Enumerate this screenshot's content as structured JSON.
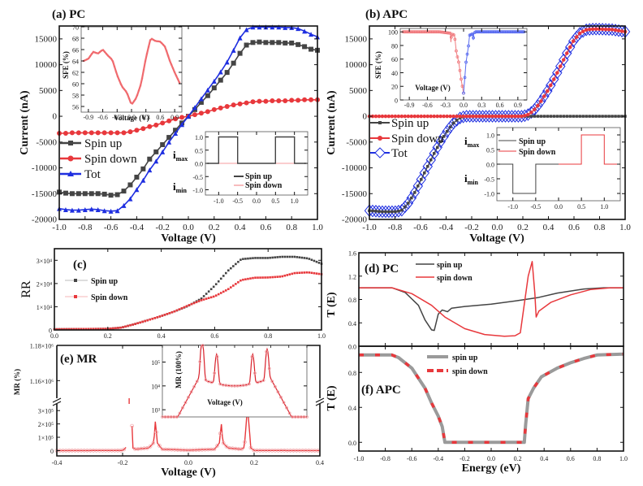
{
  "colors": {
    "black": "#444444",
    "red": "#e8383c",
    "blue": "#1f2fe0",
    "gray": "#9a9a9a",
    "pink": "#f0a0a4"
  },
  "chart_data": [
    {
      "id": "a",
      "type": "line",
      "title": "(a) PC",
      "xlabel": "Voltage (V)",
      "ylabel": "Current (nA)",
      "xlim": [
        -1.0,
        1.0
      ],
      "ylim": [
        -20000,
        17500
      ],
      "xticks": [
        "-1.0",
        "-0.8",
        "-0.6",
        "-0.4",
        "-0.2",
        "0.0",
        "0.2",
        "0.4",
        "0.6",
        "0.8",
        "1.0"
      ],
      "yticks": [
        "-20000",
        "-15000",
        "-10000",
        "-5000",
        "0",
        "5000",
        "10000",
        "15000"
      ],
      "legend": [
        "Spin up",
        "Spin down",
        "Tot"
      ],
      "x": [
        -1.0,
        -0.95,
        -0.9,
        -0.85,
        -0.8,
        -0.75,
        -0.7,
        -0.65,
        -0.6,
        -0.55,
        -0.5,
        -0.45,
        -0.4,
        -0.35,
        -0.3,
        -0.25,
        -0.2,
        -0.15,
        -0.1,
        -0.05,
        0.0,
        0.05,
        0.1,
        0.15,
        0.2,
        0.25,
        0.3,
        0.35,
        0.4,
        0.45,
        0.5,
        0.55,
        0.6,
        0.65,
        0.7,
        0.75,
        0.8,
        0.85,
        0.9,
        0.95,
        1.0
      ],
      "series": [
        {
          "name": "Spin up",
          "values": [
            -14700,
            -14900,
            -15000,
            -15000,
            -15000,
            -15000,
            -15000,
            -15100,
            -15300,
            -15200,
            -14500,
            -13300,
            -11800,
            -10200,
            -8300,
            -6900,
            -5500,
            -4100,
            -2700,
            -1300,
            0,
            1300,
            2700,
            4000,
            5500,
            7000,
            8500,
            10300,
            12200,
            13800,
            14300,
            14400,
            14300,
            14300,
            14300,
            14200,
            14200,
            13900,
            13500,
            13000,
            12800
          ]
        },
        {
          "name": "Spin down",
          "values": [
            -3300,
            -3300,
            -3200,
            -3200,
            -3200,
            -3200,
            -3200,
            -3200,
            -3200,
            -3200,
            -3200,
            -3000,
            -2700,
            -2400,
            -2000,
            -1700,
            -1300,
            -900,
            -500,
            -200,
            0,
            300,
            600,
            900,
            1300,
            1600,
            1900,
            2200,
            2400,
            2600,
            2800,
            2900,
            2900,
            3000,
            3000,
            3000,
            3100,
            3100,
            3200,
            3200,
            3200
          ]
        },
        {
          "name": "Tot",
          "values": [
            -17900,
            -18100,
            -18200,
            -18200,
            -18100,
            -18000,
            -18100,
            -18300,
            -18400,
            -18300,
            -17300,
            -16000,
            -14200,
            -12400,
            -10400,
            -8700,
            -6900,
            -5000,
            -3300,
            -1600,
            0,
            1700,
            3400,
            5100,
            6800,
            8600,
            10500,
            12800,
            15200,
            16800,
            17300,
            17300,
            17300,
            17300,
            17300,
            17200,
            17200,
            17000,
            16500,
            15900,
            15400
          ]
        }
      ],
      "inset_sfe": {
        "ylabel": "SFE (%)",
        "xlabel": "Voltage (V)",
        "ylim": [
          55,
          70
        ],
        "xlim": [
          -1.05,
          1.05
        ],
        "xticks": [
          "-0.9",
          "-0.6",
          "-0.3",
          "0.0",
          "0.3",
          "0.6",
          "0.9"
        ],
        "yticks": [
          "56",
          "58",
          "60",
          "62",
          "64",
          "66",
          "68",
          "70"
        ],
        "x": [
          -1.0,
          -0.9,
          -0.8,
          -0.7,
          -0.6,
          -0.5,
          -0.4,
          -0.3,
          -0.2,
          -0.1,
          0.0,
          0.1,
          0.2,
          0.3,
          0.4,
          0.5,
          0.6,
          0.7,
          0.8,
          0.9,
          1.0
        ],
        "values": [
          64.0,
          64.4,
          65.6,
          65.3,
          66.0,
          65.0,
          64.2,
          61.5,
          59.5,
          58.5,
          56.3,
          57.5,
          60.0,
          64.5,
          68.0,
          67.5,
          67.4,
          66.5,
          64.0,
          62.0,
          60.2
        ]
      },
      "inset_i": {
        "yticks": [
          "1.0",
          "0.5",
          "0.0",
          "-0.5",
          "-1.0"
        ],
        "xticks": [
          "-1.0",
          "-0.5",
          "0.0",
          "0.5",
          "1.0"
        ],
        "ylabel_max": "i",
        "ylabel_max_sub": "max",
        "ylabel_min": "i",
        "ylabel_min_sub": "min",
        "legend": [
          "Spin up",
          "Spin down"
        ],
        "spin_up": [
          [
            -1.3,
            0
          ],
          [
            -1.0,
            0
          ],
          [
            -1.0,
            1
          ],
          [
            -0.5,
            1
          ],
          [
            -0.5,
            0
          ],
          [
            0.5,
            0
          ],
          [
            0.5,
            1
          ],
          [
            1.0,
            1
          ],
          [
            1.0,
            0
          ],
          [
            1.3,
            0
          ]
        ],
        "spin_down": [
          [
            -1.3,
            0
          ],
          [
            1.3,
            0
          ]
        ]
      }
    },
    {
      "id": "b",
      "type": "line",
      "title": "(b) APC",
      "xlabel": "Voltage (V)",
      "ylabel": "Current (nA)",
      "xlim": [
        -1.0,
        1.0
      ],
      "ylim": [
        -20000,
        17500
      ],
      "xticks": [
        "-1.0",
        "-0.8",
        "-0.6",
        "-0.4",
        "-0.2",
        "0.0",
        "0.2",
        "0.4",
        "0.6",
        "0.8",
        "1.0"
      ],
      "yticks": [
        "-20000",
        "-15000",
        "-10000",
        "-5000",
        "0",
        "5000",
        "10000",
        "15000"
      ],
      "legend": [
        "Spin up",
        "Spin down",
        "Tot"
      ],
      "x": [
        -1.0,
        -0.9,
        -0.8,
        -0.75,
        -0.7,
        -0.65,
        -0.6,
        -0.55,
        -0.5,
        -0.45,
        -0.4,
        -0.35,
        -0.3,
        -0.25,
        -0.2,
        0.0,
        0.2,
        0.25,
        0.3,
        0.35,
        0.4,
        0.45,
        0.5,
        0.55,
        0.6,
        0.65,
        0.7,
        0.75,
        0.8,
        0.9,
        1.0
      ],
      "series": [
        {
          "name": "Spin up",
          "values": [
            -18300,
            -18500,
            -18500,
            -18300,
            -17000,
            -15000,
            -12500,
            -10000,
            -7500,
            -5200,
            -3200,
            -1500,
            -400,
            0,
            0,
            0,
            0,
            0,
            0,
            0,
            0,
            0,
            0,
            0,
            0,
            0,
            0,
            0,
            0,
            0,
            0
          ]
        },
        {
          "name": "Spin down",
          "values": [
            0,
            0,
            0,
            0,
            0,
            0,
            0,
            0,
            0,
            0,
            0,
            0,
            0,
            0,
            0,
            0,
            0,
            400,
            1500,
            3200,
            5200,
            7500,
            10000,
            12500,
            14800,
            16200,
            16800,
            16900,
            16900,
            16800,
            16400
          ]
        },
        {
          "name": "Tot",
          "values": [
            -18300,
            -18500,
            -18500,
            -18300,
            -17000,
            -15000,
            -12500,
            -10000,
            -7500,
            -5200,
            -3200,
            -1500,
            -400,
            0,
            0,
            0,
            0,
            400,
            1500,
            3200,
            5200,
            7500,
            10000,
            12500,
            14800,
            16200,
            16800,
            16900,
            16900,
            16800,
            16400
          ]
        }
      ],
      "inset_sfe": {
        "ylabel": "SFE (%)",
        "xlabel": "Voltage (V)",
        "ylim": [
          0,
          105
        ],
        "xlim": [
          -1.05,
          1.05
        ],
        "xticks": [
          "-0.9",
          "-0.6",
          "-0.3",
          "0.0",
          "0.3",
          "0.6",
          "0.9"
        ],
        "yticks": [
          "0",
          "20",
          "40",
          "60",
          "80",
          "100"
        ],
        "red": {
          "x": [
            -1.0,
            -0.4,
            -0.22,
            -0.21,
            -0.2,
            -0.15,
            -0.12,
            -0.08,
            -0.04,
            0.0
          ],
          "values": [
            100,
            100,
            98,
            85,
            97,
            95,
            70,
            55,
            30,
            10
          ]
        },
        "blue": {
          "x": [
            0.0,
            0.04,
            0.08,
            0.1,
            0.15,
            0.16,
            0.17,
            0.2,
            1.0
          ],
          "values": [
            10,
            55,
            78,
            95,
            97,
            88,
            98,
            100,
            100
          ]
        }
      },
      "inset_i": {
        "yticks": [
          "1.0",
          "0.5",
          "0.0",
          "-0.5",
          "-1.0"
        ],
        "xticks": [
          "-1.0",
          "-0.5",
          "0.0",
          "0.5",
          "1.0"
        ],
        "ylabel_max": "i",
        "ylabel_max_sub": "max",
        "ylabel_min": "i",
        "ylabel_min_sub": "min",
        "legend": [
          "Spin  up",
          "Spin down"
        ],
        "spin_up": [
          [
            -1.3,
            0
          ],
          [
            -1.0,
            0
          ],
          [
            -1.0,
            -1
          ],
          [
            -0.5,
            -1
          ],
          [
            -0.5,
            0
          ],
          [
            0.0,
            0
          ]
        ],
        "spin_down": [
          [
            0.0,
            0
          ],
          [
            0.5,
            0
          ],
          [
            0.5,
            1
          ],
          [
            1.0,
            1
          ],
          [
            1.0,
            0
          ],
          [
            1.3,
            0
          ]
        ]
      }
    },
    {
      "id": "c",
      "type": "line",
      "title": "(c)",
      "xlabel": "",
      "ylabel": "RR",
      "xlim": [
        0,
        1.0
      ],
      "ylim": [
        0,
        35000
      ],
      "xticks": [
        "0.0",
        "0.2",
        "0.4",
        "0.6",
        "0.8",
        "1.0"
      ],
      "yticks": [
        "0",
        "1×10⁴",
        "2×10⁴",
        "3×10⁴"
      ],
      "legend": [
        "Spin up",
        "Spin down"
      ],
      "x": [
        0.0,
        0.1,
        0.2,
        0.25,
        0.3,
        0.35,
        0.4,
        0.45,
        0.5,
        0.55,
        0.6,
        0.65,
        0.7,
        0.75,
        0.8,
        0.85,
        0.9,
        0.95,
        1.0
      ],
      "series": [
        {
          "name": "Spin up",
          "values": [
            300,
            400,
            500,
            1000,
            2500,
            4200,
            6000,
            8000,
            10300,
            13500,
            19000,
            25500,
            30500,
            31000,
            31000,
            31500,
            31500,
            30800,
            28500
          ]
        },
        {
          "name": "Spin down",
          "values": [
            300,
            400,
            500,
            1000,
            2500,
            4200,
            6000,
            8000,
            10500,
            12800,
            14500,
            17500,
            21500,
            22500,
            22600,
            23000,
            24500,
            24800,
            24000
          ]
        }
      ]
    },
    {
      "id": "d",
      "type": "line",
      "title": "(d) PC",
      "xlabel": "",
      "ylabel": "T (E)",
      "xlim": [
        -1.0,
        1.0
      ],
      "ylim": [
        0,
        1.6
      ],
      "yticks": [
        "0.0",
        "0.4",
        "0.8",
        "1.2",
        "1.6"
      ],
      "legend": [
        "spin up",
        "spin down"
      ],
      "series": [
        {
          "name": "spin up",
          "x": [
            -1.0,
            -0.75,
            -0.65,
            -0.55,
            -0.5,
            -0.45,
            -0.43,
            -0.4,
            -0.37,
            -0.33,
            -0.3,
            -0.2,
            0.0,
            0.2,
            0.35,
            0.5,
            0.7,
            0.85,
            1.0
          ],
          "values": [
            1.0,
            1.0,
            0.92,
            0.7,
            0.45,
            0.28,
            0.27,
            0.55,
            0.62,
            0.59,
            0.65,
            0.68,
            0.72,
            0.78,
            0.83,
            0.91,
            0.98,
            1.0,
            1.0
          ]
        },
        {
          "name": "spin down",
          "x": [
            -1.0,
            -0.75,
            -0.6,
            -0.45,
            -0.35,
            -0.2,
            -0.05,
            0.1,
            0.18,
            0.22,
            0.28,
            0.31,
            0.33,
            0.34,
            0.36,
            0.45,
            0.6,
            0.75,
            0.9,
            1.0
          ],
          "values": [
            1.0,
            1.0,
            0.9,
            0.7,
            0.5,
            0.3,
            0.2,
            0.17,
            0.18,
            0.23,
            1.2,
            1.45,
            0.9,
            0.5,
            0.6,
            0.75,
            0.88,
            0.97,
            1.0,
            1.0
          ]
        }
      ]
    },
    {
      "id": "e",
      "type": "line",
      "title": "(e) MR",
      "xlabel": "Voltage (V)",
      "ylabel": "MR (%)",
      "xlim": [
        -0.4,
        0.4
      ],
      "xticks": [
        "-0.4",
        "-0.2",
        "0.0",
        "0.2",
        "0.4"
      ],
      "yticks_lower": [
        "0",
        "1×10⁵",
        "2×10⁵",
        "3×10⁵"
      ],
      "yticks_upper": [
        "1.16×10⁶",
        "1.18×10⁶"
      ],
      "x": [
        -0.4,
        -0.2,
        -0.19,
        -0.18,
        -0.17,
        -0.16,
        -0.12,
        -0.105,
        -0.1,
        -0.095,
        -0.08,
        0.0,
        0.08,
        0.095,
        0.1,
        0.105,
        0.12,
        0.16,
        0.17,
        0.18,
        0.19,
        0.2,
        0.4
      ],
      "values": [
        0,
        1000,
        20000,
        1175000,
        20000,
        10000,
        20000,
        60000,
        230000,
        60000,
        10000,
        3000,
        10000,
        60000,
        210000,
        60000,
        20000,
        10000,
        20000,
        330000,
        20000,
        1000,
        0
      ],
      "inset": {
        "ylabel": "MR (100%)",
        "xlabel": "Voltage (V)",
        "scale": "log",
        "ylim": [
          500,
          500000
        ],
        "yticks": [
          "10³",
          "10⁴",
          "10⁵"
        ]
      }
    },
    {
      "id": "f",
      "type": "line",
      "title": "(f) APC",
      "xlabel": "Energy (eV)",
      "ylabel": "T (E)",
      "xlim": [
        -1.0,
        1.0
      ],
      "ylim": [
        -0.1,
        1.1
      ],
      "xticks": [
        "-1.0",
        "-0.8",
        "-0.6",
        "-0.4",
        "-0.2",
        "0.0",
        "0.2",
        "0.4",
        "0.6",
        "0.8",
        "1.0"
      ],
      "yticks": [
        "0.0",
        "0.4",
        "0.8"
      ],
      "legend": [
        "spin up",
        "spin down"
      ],
      "series": [
        {
          "name": "spin up",
          "x": [
            -1.0,
            -0.75,
            -0.7,
            -0.6,
            -0.5,
            -0.45,
            -0.4,
            -0.37,
            -0.35,
            0.25,
            0.26,
            0.28,
            0.32,
            0.38,
            0.5,
            0.6,
            0.7,
            0.8,
            1.0
          ],
          "values": [
            1.0,
            1.0,
            0.97,
            0.85,
            0.62,
            0.45,
            0.3,
            0.18,
            0.0,
            0.0,
            0.2,
            0.5,
            0.62,
            0.75,
            0.85,
            0.91,
            0.96,
            1.0,
            1.01
          ]
        },
        {
          "name": "spin down",
          "x": [
            -1.0,
            -0.75,
            -0.7,
            -0.6,
            -0.5,
            -0.45,
            -0.4,
            -0.37,
            -0.35,
            0.25,
            0.26,
            0.28,
            0.32,
            0.38,
            0.5,
            0.6,
            0.7,
            0.8,
            1.0
          ],
          "values": [
            1.0,
            1.0,
            0.97,
            0.85,
            0.62,
            0.45,
            0.3,
            0.18,
            0.0,
            0.0,
            0.2,
            0.5,
            0.62,
            0.75,
            0.85,
            0.91,
            0.96,
            1.0,
            1.01
          ]
        }
      ]
    }
  ]
}
